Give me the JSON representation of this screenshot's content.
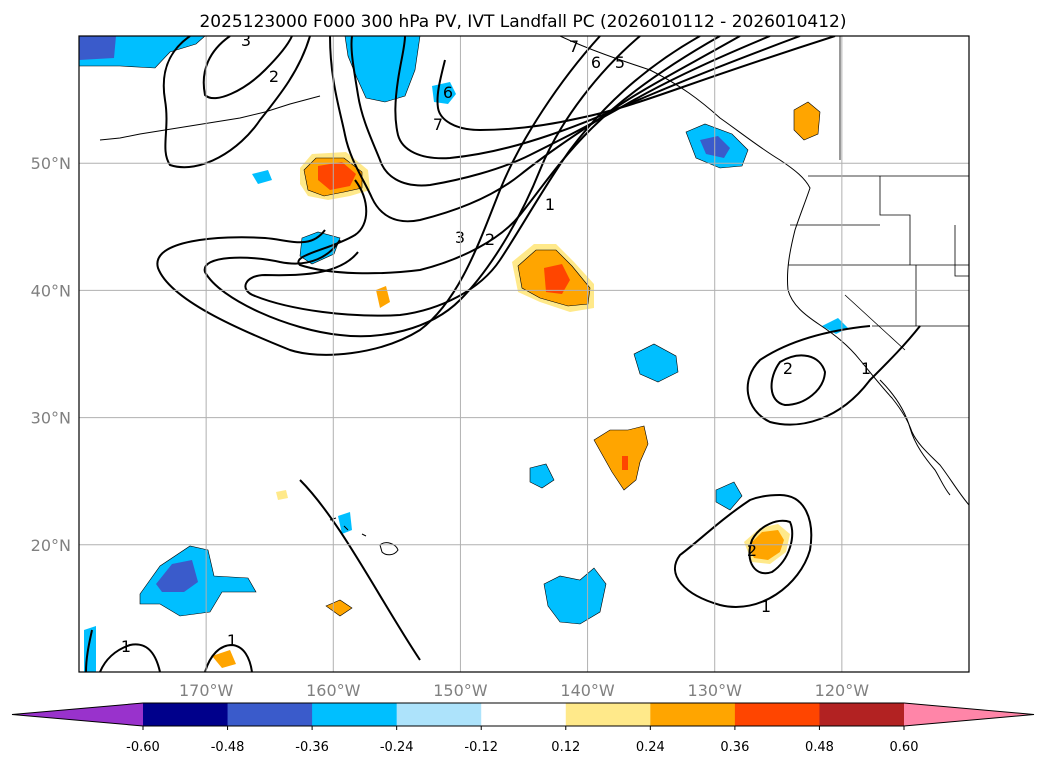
{
  "title": "2025123000 F000 300 hPa PV, IVT Landfall PC (2026010112 - 2026010412)",
  "lon_ticks": [
    {
      "label": "170°W",
      "lon": -170
    },
    {
      "label": "160°W",
      "lon": -160
    },
    {
      "label": "150°W",
      "lon": -150
    },
    {
      "label": "140°W",
      "lon": -140
    },
    {
      "label": "130°W",
      "lon": -130
    },
    {
      "label": "120°W",
      "lon": -120
    }
  ],
  "lat_ticks": [
    {
      "label": "50°N",
      "lat": 50
    },
    {
      "label": "40°N",
      "lat": 40
    },
    {
      "label": "30°N",
      "lat": 30
    },
    {
      "label": "20°N",
      "lat": 20
    }
  ],
  "extent": {
    "lon_min": -180,
    "lon_max": -110,
    "lat_min": 10,
    "lat_max": 60
  },
  "colorbar": {
    "levels": [
      "-0.60",
      "-0.48",
      "-0.36",
      "-0.24",
      "-0.12",
      "0.12",
      "0.24",
      "0.36",
      "0.48",
      "0.60"
    ],
    "colors": [
      "#9932CC",
      "#00008B",
      "#3A5BCB",
      "#00BFFF",
      "#ADE3FB",
      "#FFFFFF",
      "#FFE98A",
      "#FFA500",
      "#FF4500",
      "#B22222",
      "#FF85A8"
    ]
  },
  "contour_labels": [
    "1",
    "2",
    "3",
    "5",
    "6",
    "7"
  ]
}
